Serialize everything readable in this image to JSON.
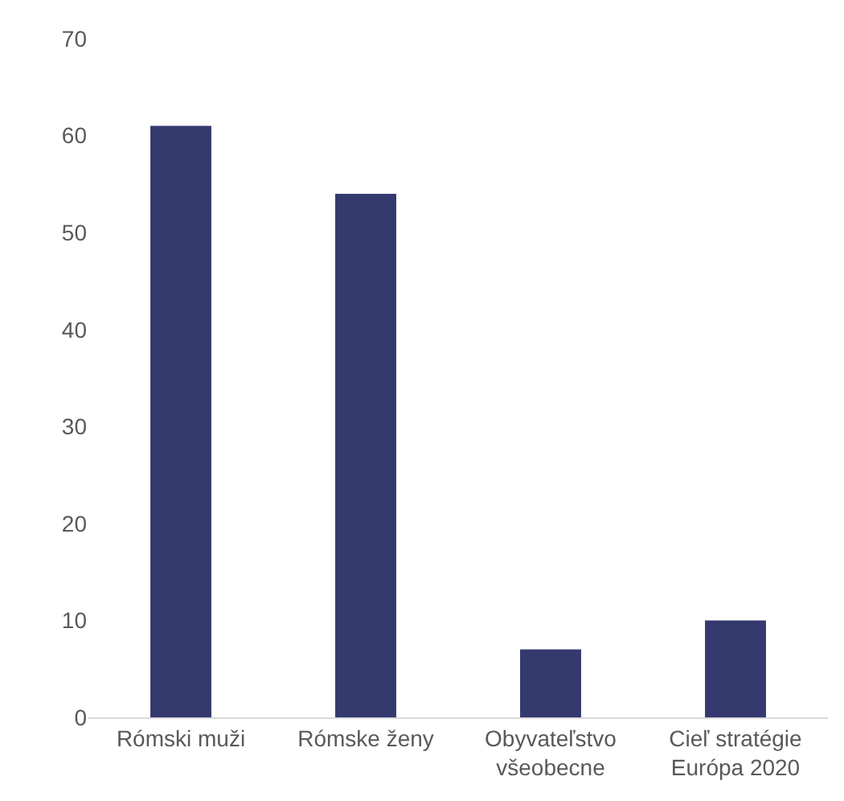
{
  "chart_data": {
    "type": "bar",
    "categories": [
      "Rómski muži",
      "Rómske ženy",
      "Obyvateľstvo všeobecne",
      "Cieľ stratégie Európa 2020"
    ],
    "values": [
      61,
      54,
      7,
      10
    ],
    "color": "#343a6e",
    "ylim": [
      0,
      70
    ],
    "yticks": [
      0,
      10,
      20,
      30,
      40,
      50,
      60,
      70
    ],
    "grid": false
  }
}
